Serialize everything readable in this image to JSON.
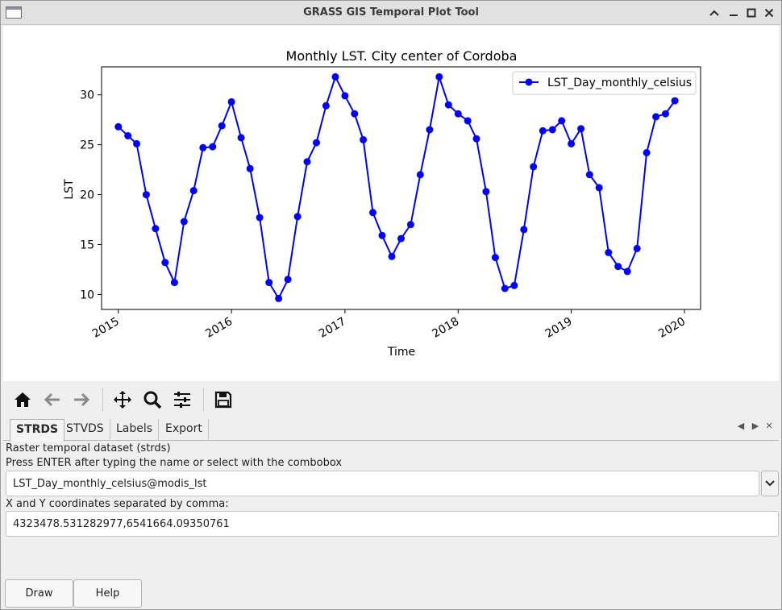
{
  "window": {
    "title": "GRASS GIS Temporal Plot Tool",
    "controls": {
      "roll_up": "^",
      "minimize": "–",
      "maximize": "□",
      "close": "×"
    }
  },
  "chart_data": {
    "type": "line",
    "title": "Monthly LST. City center of Cordoba",
    "xlabel": "Time",
    "ylabel": "LST",
    "xlim": [
      "2014-11-08",
      "2020-02-22"
    ],
    "ylim": [
      8.5,
      32.8
    ],
    "x_ticks": [
      "2015-01-01",
      "2016-01-01",
      "2017-01-01",
      "2018-01-01",
      "2019-01-01",
      "2020-01-01"
    ],
    "x_tick_labels": [
      "2015",
      "2016",
      "2017",
      "2018",
      "2019",
      "2020"
    ],
    "y_ticks": [
      10,
      15,
      20,
      25,
      30
    ],
    "y_tick_labels": [
      "10",
      "15",
      "20",
      "25",
      "30"
    ],
    "legend": {
      "position": "top-right"
    },
    "grid": false,
    "series": [
      {
        "name": "LST_Day_monthly_celsius",
        "color": "#0000ff",
        "marker": "circle",
        "x": [
          "2015-01",
          "2015-02",
          "2015-03",
          "2015-04",
          "2015-05",
          "2015-06",
          "2015-07",
          "2015-08",
          "2015-09",
          "2015-10",
          "2015-11",
          "2015-12",
          "2016-01",
          "2016-02",
          "2016-03",
          "2016-04",
          "2016-05",
          "2016-06",
          "2016-07",
          "2016-08",
          "2016-09",
          "2016-10",
          "2016-11",
          "2016-12",
          "2017-01",
          "2017-02",
          "2017-03",
          "2017-04",
          "2017-05",
          "2017-06",
          "2017-07",
          "2017-08",
          "2017-09",
          "2017-10",
          "2017-11",
          "2017-12",
          "2018-01",
          "2018-02",
          "2018-03",
          "2018-04",
          "2018-05",
          "2018-06",
          "2018-07",
          "2018-08",
          "2018-09",
          "2018-10",
          "2018-11",
          "2018-12",
          "2019-01",
          "2019-02",
          "2019-03",
          "2019-04",
          "2019-05",
          "2019-06",
          "2019-07",
          "2019-08",
          "2019-09",
          "2019-10",
          "2019-11",
          "2019-12"
        ],
        "y": [
          26.8,
          25.9,
          25.1,
          20.0,
          16.6,
          13.2,
          11.2,
          17.3,
          20.4,
          24.7,
          24.8,
          26.9,
          29.3,
          25.7,
          22.6,
          17.7,
          11.2,
          9.6,
          11.5,
          17.8,
          23.3,
          25.2,
          28.9,
          31.8,
          29.9,
          28.1,
          25.5,
          18.2,
          15.9,
          13.8,
          15.6,
          17.0,
          22.0,
          26.5,
          31.8,
          29.0,
          28.1,
          27.4,
          25.6,
          20.3,
          13.7,
          10.6,
          10.9,
          16.5,
          22.8,
          26.4,
          26.5,
          27.4,
          25.1,
          26.6,
          22.0,
          20.7,
          14.2,
          12.8,
          12.3,
          14.6,
          24.2,
          27.8,
          28.1,
          29.4
        ]
      }
    ]
  },
  "toolbar": {
    "icons": [
      "home-icon",
      "back-arrow-icon",
      "forward-arrow-icon",
      "pan-icon",
      "zoom-icon",
      "configure-subplots-icon",
      "save-icon"
    ]
  },
  "tabs": [
    "STRDS",
    "STVDS",
    "Labels",
    "Export"
  ],
  "tab_nav": {
    "prev": "◀",
    "next": "▶",
    "close": "✕"
  },
  "strds": {
    "heading": "Raster temporal dataset (strds)",
    "hint": "Press ENTER after typing the name or select with the combobox",
    "dataset_value": "LST_Day_monthly_celsius@modis_lst",
    "coords_label": "X and Y coordinates separated by comma:",
    "coords_value": "4323478.531282977,6541664.09350761"
  },
  "buttons": {
    "draw": "Draw",
    "help": "Help"
  }
}
